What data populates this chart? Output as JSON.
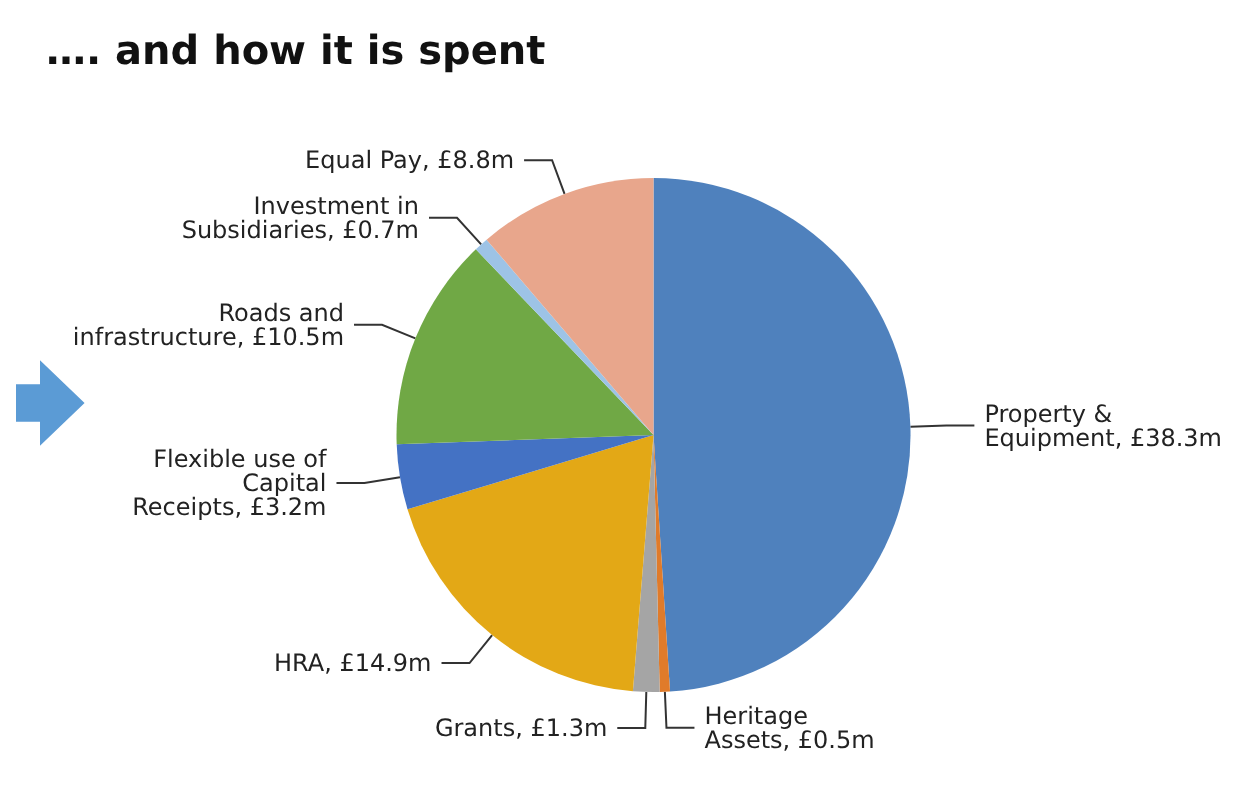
{
  "chart_data": {
    "type": "pie",
    "title": "…. and how it is spent",
    "categories": [
      "Property & Equipment",
      "Heritage Assets",
      "Grants",
      "HRA",
      "Flexible use of Capital Receipts",
      "Roads and infrastructure",
      "Investment in Subsidiaries",
      "Equal Pay"
    ],
    "values": [
      38.3,
      0.5,
      1.3,
      14.9,
      3.2,
      10.5,
      0.7,
      8.8
    ],
    "value_labels": [
      "£38.3m",
      "£0.5m",
      "£1.3m",
      "£14.9m",
      "£3.2m",
      "£10.5m",
      "£0.7m",
      "£8.8m"
    ],
    "colors": [
      "#4f81bd",
      "#e07b2a",
      "#a5a5a5",
      "#e3a816",
      "#4472c4",
      "#70a845",
      "#9dc3e6",
      "#e8a68c"
    ],
    "legend": false
  }
}
